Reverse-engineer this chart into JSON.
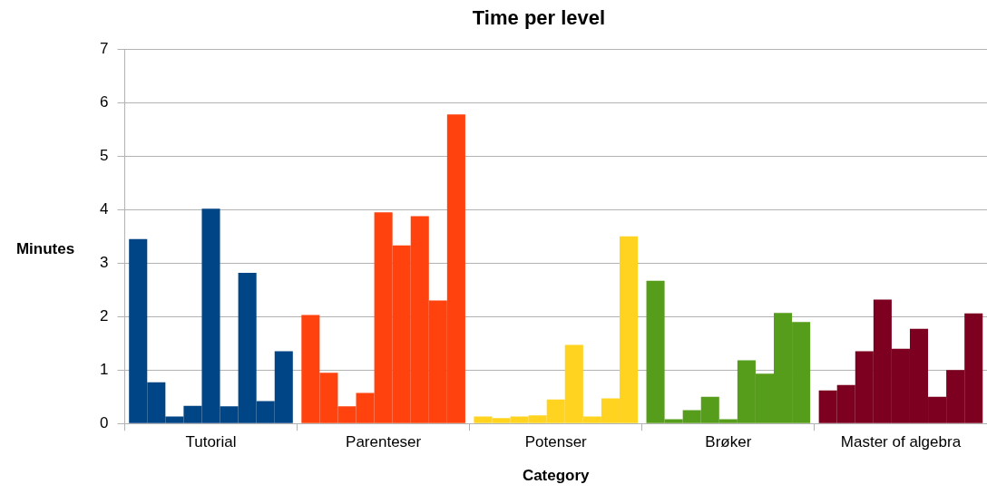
{
  "chart_data": {
    "type": "bar",
    "title": "Time per level",
    "xlabel": "Category",
    "ylabel": "Minutes",
    "categories": [
      "Tutorial",
      "Parenteser",
      "Potenser",
      "Brøker",
      "Master of algebra"
    ],
    "series": [
      {
        "colors": [
          "#004586",
          "#ff420e",
          "#ffd320",
          "#579d1c",
          "#7e0021"
        ],
        "values": [
          3.45,
          2.03,
          0.13,
          2.67,
          0.62
        ]
      },
      {
        "colors": [
          "#004586",
          "#ff420e",
          "#ffd320",
          "#579d1c",
          "#7e0021"
        ],
        "values": [
          0.77,
          0.95,
          0.1,
          0.08,
          0.72
        ]
      },
      {
        "colors": [
          "#004586",
          "#ff420e",
          "#ffd320",
          "#579d1c",
          "#7e0021"
        ],
        "values": [
          0.13,
          0.32,
          0.13,
          0.25,
          1.35
        ]
      },
      {
        "colors": [
          "#004586",
          "#ff420e",
          "#ffd320",
          "#579d1c",
          "#7e0021"
        ],
        "values": [
          0.33,
          0.57,
          0.15,
          0.5,
          2.32
        ]
      },
      {
        "colors": [
          "#004586",
          "#ff420e",
          "#ffd320",
          "#579d1c",
          "#7e0021"
        ],
        "values": [
          4.02,
          3.95,
          0.45,
          0.08,
          1.4
        ]
      },
      {
        "colors": [
          "#004586",
          "#ff420e",
          "#ffd320",
          "#579d1c",
          "#7e0021"
        ],
        "values": [
          0.32,
          3.33,
          1.47,
          1.18,
          1.77
        ]
      },
      {
        "colors": [
          "#004586",
          "#ff420e",
          "#ffd320",
          "#579d1c",
          "#7e0021"
        ],
        "values": [
          2.82,
          3.88,
          0.13,
          0.93,
          0.5
        ]
      },
      {
        "colors": [
          "#004586",
          "#ff420e",
          "#ffd320",
          "#579d1c",
          "#7e0021"
        ],
        "values": [
          0.42,
          2.3,
          0.47,
          2.07,
          1.0
        ]
      },
      {
        "colors": [
          "#004586",
          "#ff420e",
          "#ffd320",
          "#579d1c",
          "#7e0021"
        ],
        "values": [
          1.35,
          5.78,
          3.5,
          1.9,
          2.06
        ]
      }
    ],
    "ylim": [
      0,
      7
    ],
    "yticks": [
      0,
      1,
      2,
      3,
      4,
      5,
      6,
      7
    ],
    "grid": "y",
    "legend": false
  }
}
